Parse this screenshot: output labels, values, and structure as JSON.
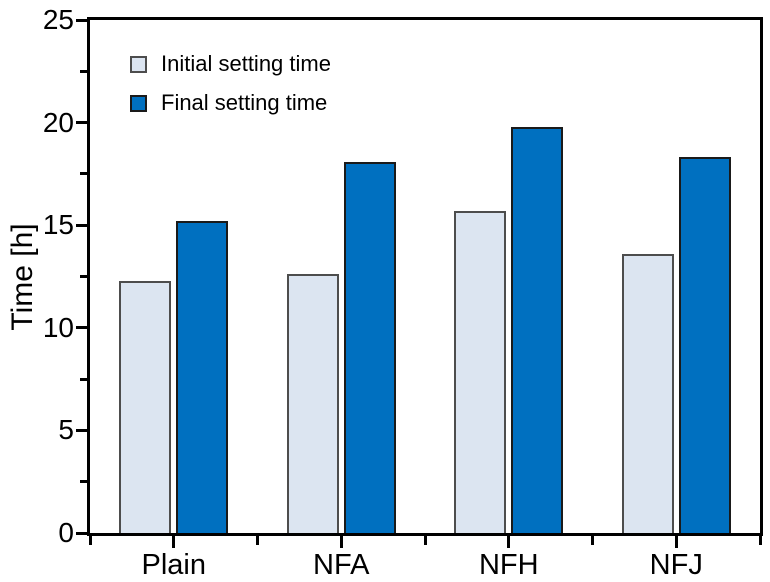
{
  "chart_data": {
    "type": "bar",
    "title": "",
    "categories": [
      "Plain",
      "NFA",
      "NFH",
      "NFJ"
    ],
    "series": [
      {
        "name": "Initial setting time",
        "values": [
          12.3,
          12.6,
          15.7,
          13.6
        ],
        "color": "#dce5f1",
        "border_color": "#4d4d4d"
      },
      {
        "name": "Final setting time",
        "values": [
          15.2,
          18.1,
          19.8,
          18.3
        ],
        "color": "#0070c0",
        "border_color": "#1a1a1a"
      }
    ],
    "xlabel": "",
    "ylabel": "Time [h]",
    "ylim": [
      0,
      25
    ],
    "y_major_ticks": [
      0,
      5,
      10,
      15,
      20,
      25
    ],
    "y_tick_labels": [
      "0",
      "5",
      "10",
      "15",
      "20",
      "25"
    ],
    "y_minor_step": 2.5,
    "grid": false,
    "frame": "full-box",
    "tick_direction": "out",
    "legend_position": "top-left"
  }
}
